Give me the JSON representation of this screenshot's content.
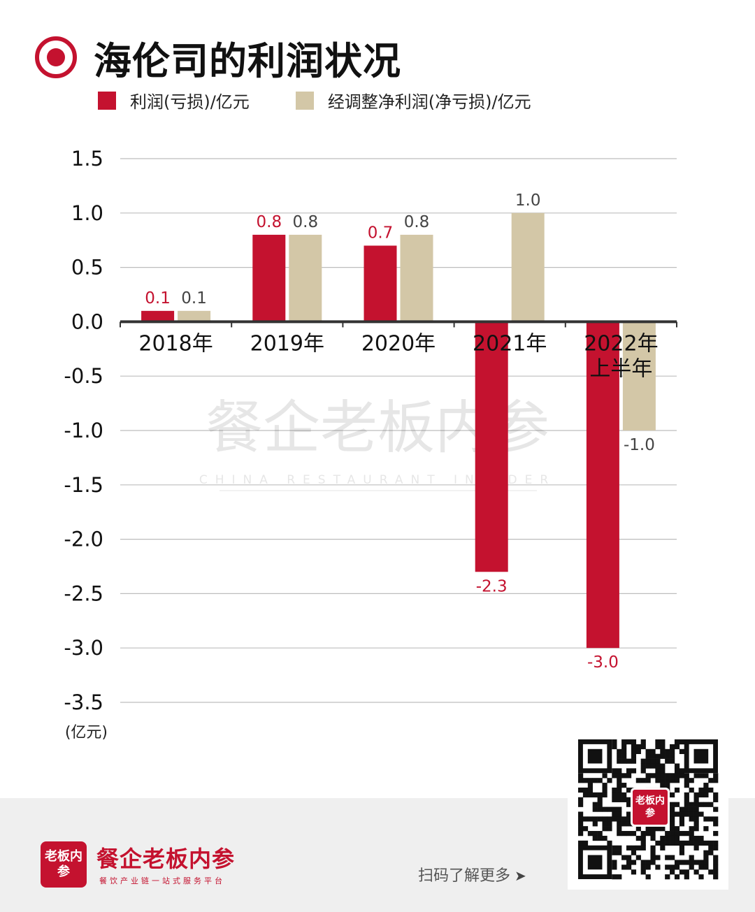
{
  "header": {
    "title": "海伦司的利润状况"
  },
  "legend": {
    "items": [
      {
        "label": "利润(亏损)/亿元",
        "color": "#c4122f"
      },
      {
        "label": "经调整净利润(净亏损)/亿元",
        "color": "#d3c7a7"
      }
    ]
  },
  "chart_data": {
    "type": "bar",
    "categories": [
      "2018年",
      "2019年",
      "2020年",
      "2021年",
      "2022年\n上半年"
    ],
    "series": [
      {
        "name": "利润(亏损)/亿元",
        "color": "#c4122f",
        "values": [
          0.1,
          0.8,
          0.7,
          -2.3,
          -3.0
        ]
      },
      {
        "name": "经调整净利润(净亏损)/亿元",
        "color": "#d3c7a7",
        "values": [
          0.1,
          0.8,
          0.8,
          1.0,
          -1.0
        ]
      }
    ],
    "ylim": [
      -3.5,
      1.5
    ],
    "yticks": [
      "1.5",
      "1.0",
      "0.5",
      "0.0",
      "-0.5",
      "-1.0",
      "-1.5",
      "-2.0",
      "-2.5",
      "-3.0",
      "-3.5"
    ],
    "yunit": "(亿元)",
    "grid": true,
    "data_labels": [
      [
        "0.1",
        "0.8",
        "0.7",
        "-2.3",
        "-3.0"
      ],
      [
        "0.1",
        "0.8",
        "0.8",
        "1.0",
        "-1.0"
      ]
    ]
  },
  "watermark": {
    "text": "餐企老板内参",
    "subtext": "CHINA RESTAURANT INSIDER"
  },
  "footer": {
    "logo_text": "老板内参",
    "brand": "餐企老板内参",
    "brand_sub": "餐饮产业链一站式服务平台",
    "scan_text": "扫码了解更多",
    "arrow": "➤"
  }
}
